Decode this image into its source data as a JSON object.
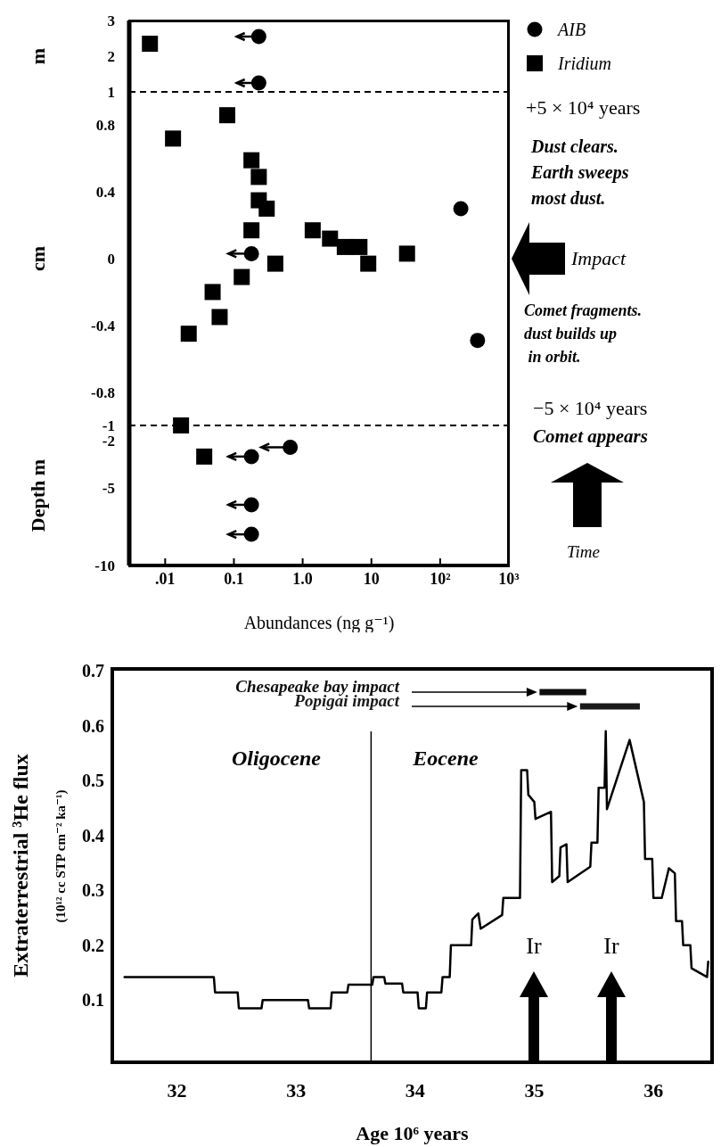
{
  "chart_data": [
    {
      "type": "scatter",
      "ylabel": "m",
      "xlim": [
        0.003,
        1000
      ],
      "ylim": [
        1,
        3
      ],
      "yticks": [
        2,
        3
      ],
      "log": "x",
      "tick_labels": "y",
      "legend": "right",
      "series": [
        {
          "name": "AIB",
          "color": "#000000",
          "marker": "circle",
          "x": [
            0.23,
            0.23
          ],
          "values": [
            2.55,
            1.25
          ],
          "xerrors": [
            [
              0.11,
              0.23
            ],
            [
              0.11,
              0.23
            ]
          ]
        },
        {
          "name": "Iridium",
          "color": "#000000",
          "marker": "square",
          "x": [
            0.006
          ],
          "values": [
            2.35
          ]
        }
      ]
    },
    {
      "type": "scatter",
      "ylabel": "cm",
      "xlim": [
        0.003,
        1000
      ],
      "ylim": [
        -1,
        1
      ],
      "yticks": [
        1,
        0.8,
        0.4,
        0,
        -0.4,
        -0.8,
        -1
      ],
      "log": "x",
      "tick_labels": "y",
      "ref_lines": [
        {
          "axis": "y",
          "value": 1,
          "line_style": "dashed"
        },
        {
          "axis": "y",
          "value": -1,
          "line_style": "dashed"
        }
      ],
      "annotations": [
        "+5 × 10⁴ years",
        "Dust clears.\nEarth sweeps\nmost dust.",
        "Impact",
        "Comet fragments.\ndust builds up\n in orbit.",
        "−5 × 10⁴ years",
        "Comet appears",
        "Time"
      ],
      "series": [
        {
          "color": "#000000",
          "marker": "circle",
          "x": [
            0.18,
            200,
            350
          ],
          "values": [
            0.03,
            0.3,
            -0.49
          ],
          "xerrors": [
            [
              0.083,
              0.18
            ],
            null,
            null
          ]
        },
        {
          "color": "#000000",
          "marker": "square",
          "x": [
            0.08,
            0.013,
            0.18,
            0.23,
            0.23,
            0.3,
            0.18,
            1.4,
            2.5,
            4.1,
            6.7,
            9,
            33,
            0.4,
            0.13,
            0.049,
            0.062,
            0.022,
            0.017
          ],
          "values": [
            0.86,
            0.72,
            0.59,
            0.49,
            0.35,
            0.3,
            0.17,
            0.17,
            0.12,
            0.07,
            0.07,
            -0.03,
            0.03,
            -0.03,
            -0.11,
            -0.2,
            -0.35,
            -0.45,
            -1
          ]
        }
      ]
    },
    {
      "type": "scatter",
      "ylabel": "Depth m",
      "xlabel": "Abundances (ng g⁻¹)",
      "xlim": [
        0.003,
        1000
      ],
      "xticks": [
        {
          "value": 0.01,
          "label": ".01"
        },
        {
          "value": 0.1,
          "label": "0.1"
        },
        {
          "value": 1,
          "label": "1.0"
        },
        {
          "value": 10,
          "label": "10"
        },
        {
          "value": 100,
          "label": "10²"
        },
        {
          "value": 1000,
          "label": "10³"
        }
      ],
      "ylim": [
        -10,
        -1
      ],
      "yticks": [
        -2,
        -5,
        -10
      ],
      "log": "x",
      "series": [
        {
          "color": "#000000",
          "marker": "circle",
          "x": [
            0.66,
            0.18,
            0.18,
            0.18
          ],
          "values": [
            -2.4,
            -3,
            -6.1,
            -8
          ],
          "xerrors": [
            [
              0.25,
              0.66
            ],
            [
              0.083,
              0.18
            ],
            [
              0.083,
              0.18
            ],
            [
              0.083,
              0.18
            ]
          ]
        },
        {
          "color": "#000000",
          "marker": "square",
          "x": [
            0.037
          ],
          "values": [
            -3
          ]
        }
      ]
    },
    {
      "type": "line",
      "xlabel": "Age 10⁶ years",
      "ylabel": "Extraterrestrial ³He flux",
      "xlim": [
        31.45,
        36.5
      ],
      "xticks": [
        32,
        33,
        34,
        35,
        36
      ],
      "ylim": [
        -0.015,
        0.705
      ],
      "yticks": [
        0.1,
        0.2,
        0.3,
        0.4,
        0.5,
        0.6,
        0.7
      ],
      "marker": "none",
      "line_style": "solid",
      "ref_lines": [
        {
          "axis": "x",
          "value": 33.63
        }
      ],
      "annotations": [
        "Oligocene",
        "Eocene",
        "(10¹² cc STP cm⁻² ka⁻¹)",
        "Ir",
        "Ir"
      ],
      "series": [
        {
          "color": "#000000",
          "x": [
            31.56,
            32.31,
            32.32,
            32.51,
            32.52,
            32.71,
            32.72,
            33.1,
            33.11,
            33.29,
            33.3,
            33.43,
            33.44,
            33.64,
            33.65,
            33.74,
            33.75,
            33.89,
            33.9,
            34.02,
            34.03,
            34.09,
            34.1,
            34.22,
            34.23,
            34.29,
            34.3,
            34.47,
            34.48,
            34.53,
            34.55,
            34.73,
            34.74,
            34.88,
            34.89,
            34.94,
            34.95,
            35.0,
            35.01,
            35.14,
            35.15,
            35.21,
            35.22,
            35.27,
            35.28,
            35.47,
            35.48,
            35.53,
            35.54,
            35.59,
            35.6,
            35.61,
            35.8,
            35.92,
            35.93,
            35.99,
            36.0,
            36.07,
            36.13,
            36.18,
            36.19,
            36.24,
            36.25,
            36.31,
            36.32,
            36.45,
            36.46
          ],
          "values": [
            0.142,
            0.142,
            0.114,
            0.114,
            0.085,
            0.085,
            0.1,
            0.1,
            0.085,
            0.085,
            0.114,
            0.114,
            0.128,
            0.128,
            0.142,
            0.142,
            0.13,
            0.13,
            0.114,
            0.114,
            0.085,
            0.085,
            0.114,
            0.114,
            0.142,
            0.142,
            0.2,
            0.2,
            0.247,
            0.258,
            0.23,
            0.255,
            0.286,
            0.286,
            0.519,
            0.519,
            0.474,
            0.461,
            0.43,
            0.443,
            0.315,
            0.326,
            0.378,
            0.384,
            0.315,
            0.343,
            0.387,
            0.387,
            0.487,
            0.487,
            0.59,
            0.448,
            0.574,
            0.461,
            0.357,
            0.357,
            0.286,
            0.286,
            0.34,
            0.331,
            0.244,
            0.244,
            0.2,
            0.2,
            0.158,
            0.142,
            0.17
          ]
        },
        {
          "name": "Chesapeake bay impact",
          "color": "#0d0d0d",
          "x": [
            35.07,
            35.41
          ],
          "values": [
            0.661,
            0.661
          ]
        },
        {
          "name": "Popigai impact",
          "color": "#1a1a1a",
          "x": [
            35.41,
            35.86
          ],
          "values": [
            0.635,
            0.635
          ]
        }
      ]
    }
  ]
}
